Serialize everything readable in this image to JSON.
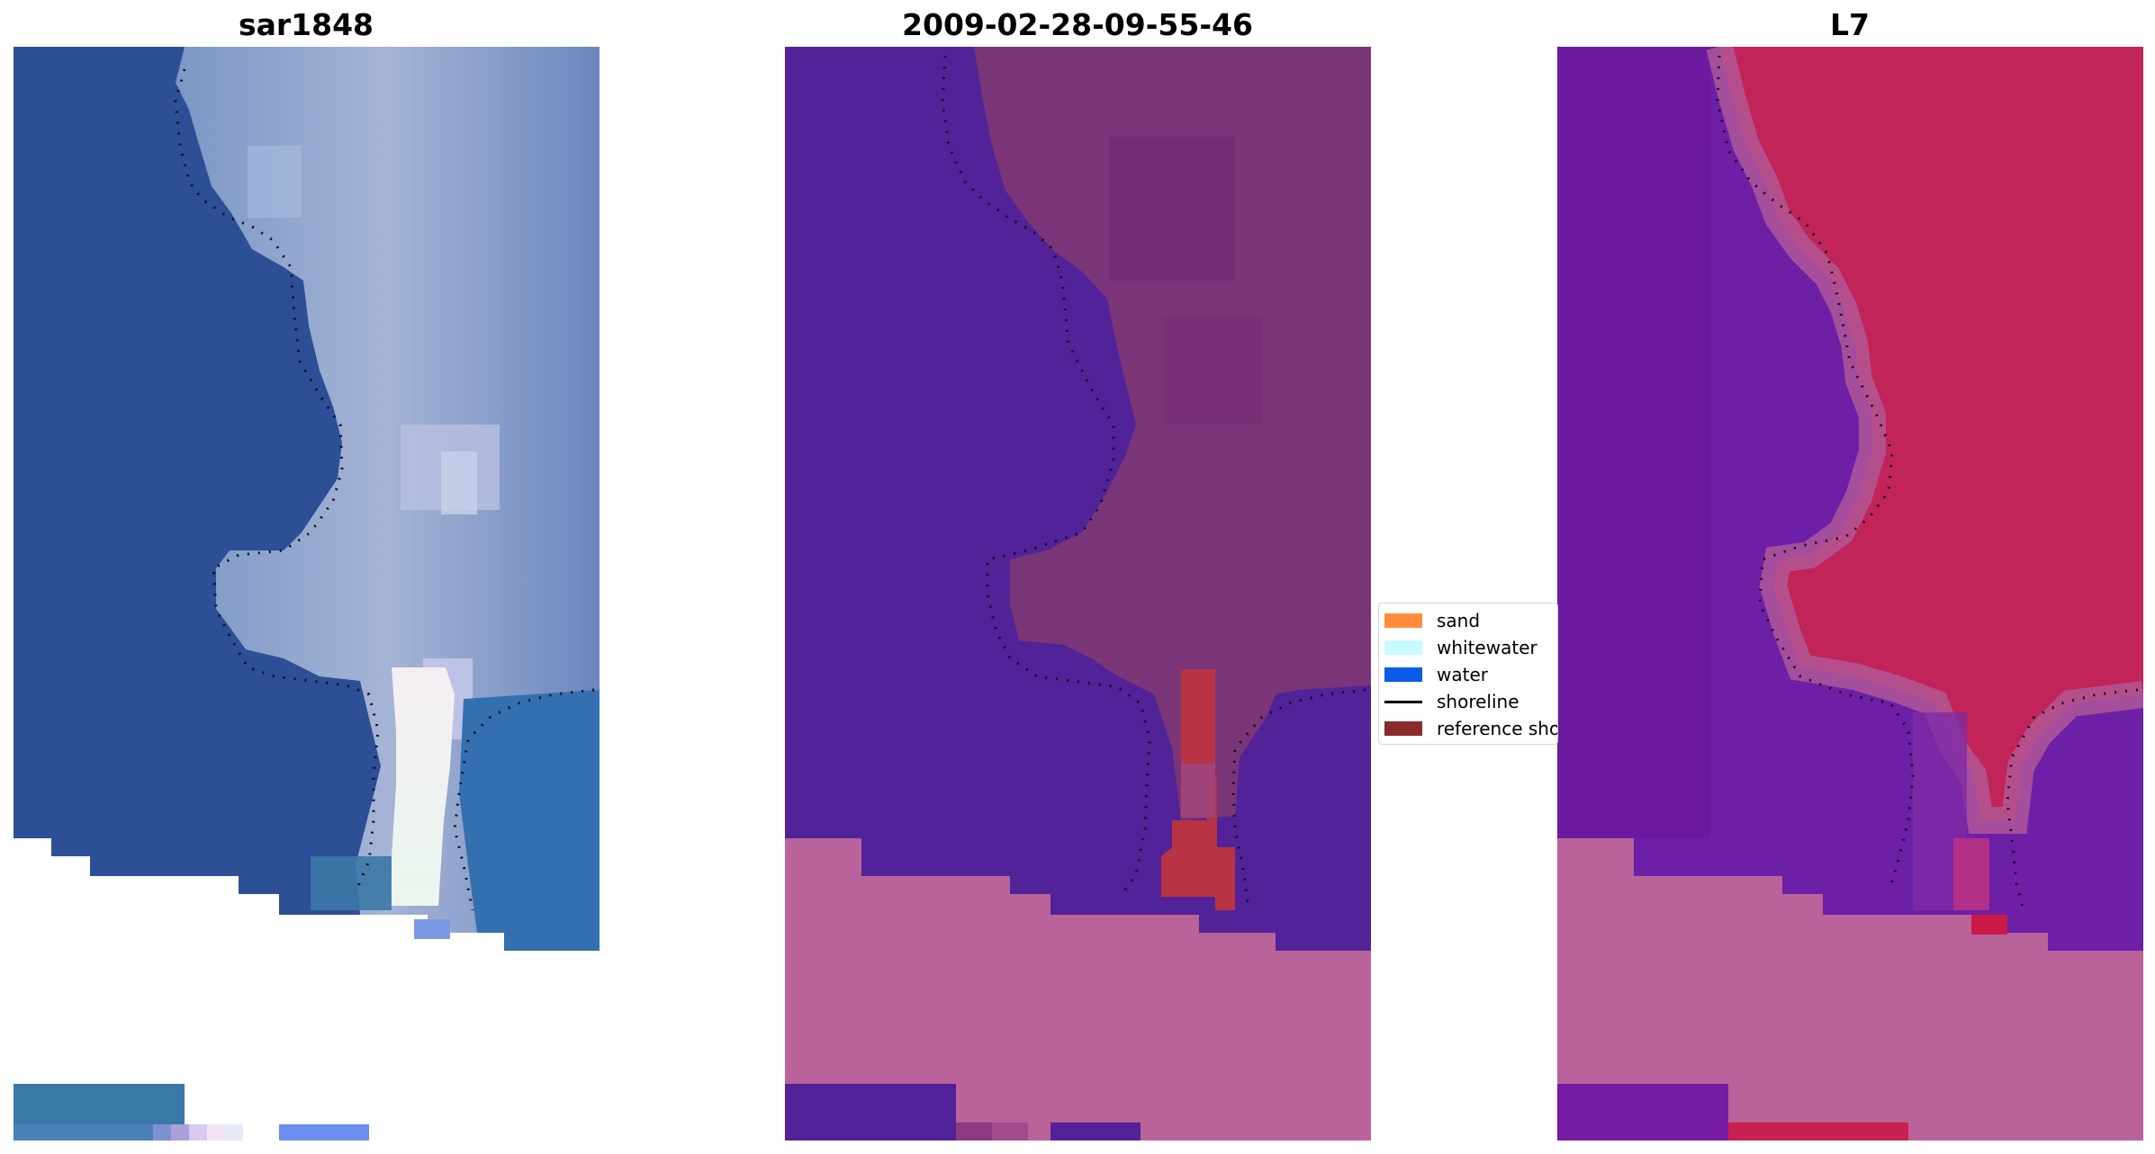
{
  "panels": [
    {
      "title": "sar1848",
      "kind": "rgb"
    },
    {
      "title": "2009-02-28-09-55-46",
      "kind": "classified"
    },
    {
      "title": "L7",
      "kind": "index"
    }
  ],
  "legend": {
    "items": [
      {
        "label": "sand",
        "color": "#ff8c3a",
        "type": "patch"
      },
      {
        "label": "whitewater",
        "color": "#c8fbff",
        "type": "patch"
      },
      {
        "label": "water",
        "color": "#0a5ce8",
        "type": "patch"
      },
      {
        "label": "shoreline",
        "color": "#000000",
        "type": "line"
      },
      {
        "label": "reference shoreline",
        "color": "#8b2a2a",
        "type": "patch"
      }
    ]
  },
  "colors": {
    "water_rgb": "#2a4f98",
    "land_rgb": "#7f99c4",
    "surf_rgb": "#e6f2f0",
    "class_water": "#50229a",
    "class_land": "#7a3478",
    "class_pink": "#b96296",
    "class_red": "#b83444",
    "index_purple": "#6a1aa6",
    "index_red": "#c0245a",
    "shoreline_dots": "#111111"
  }
}
